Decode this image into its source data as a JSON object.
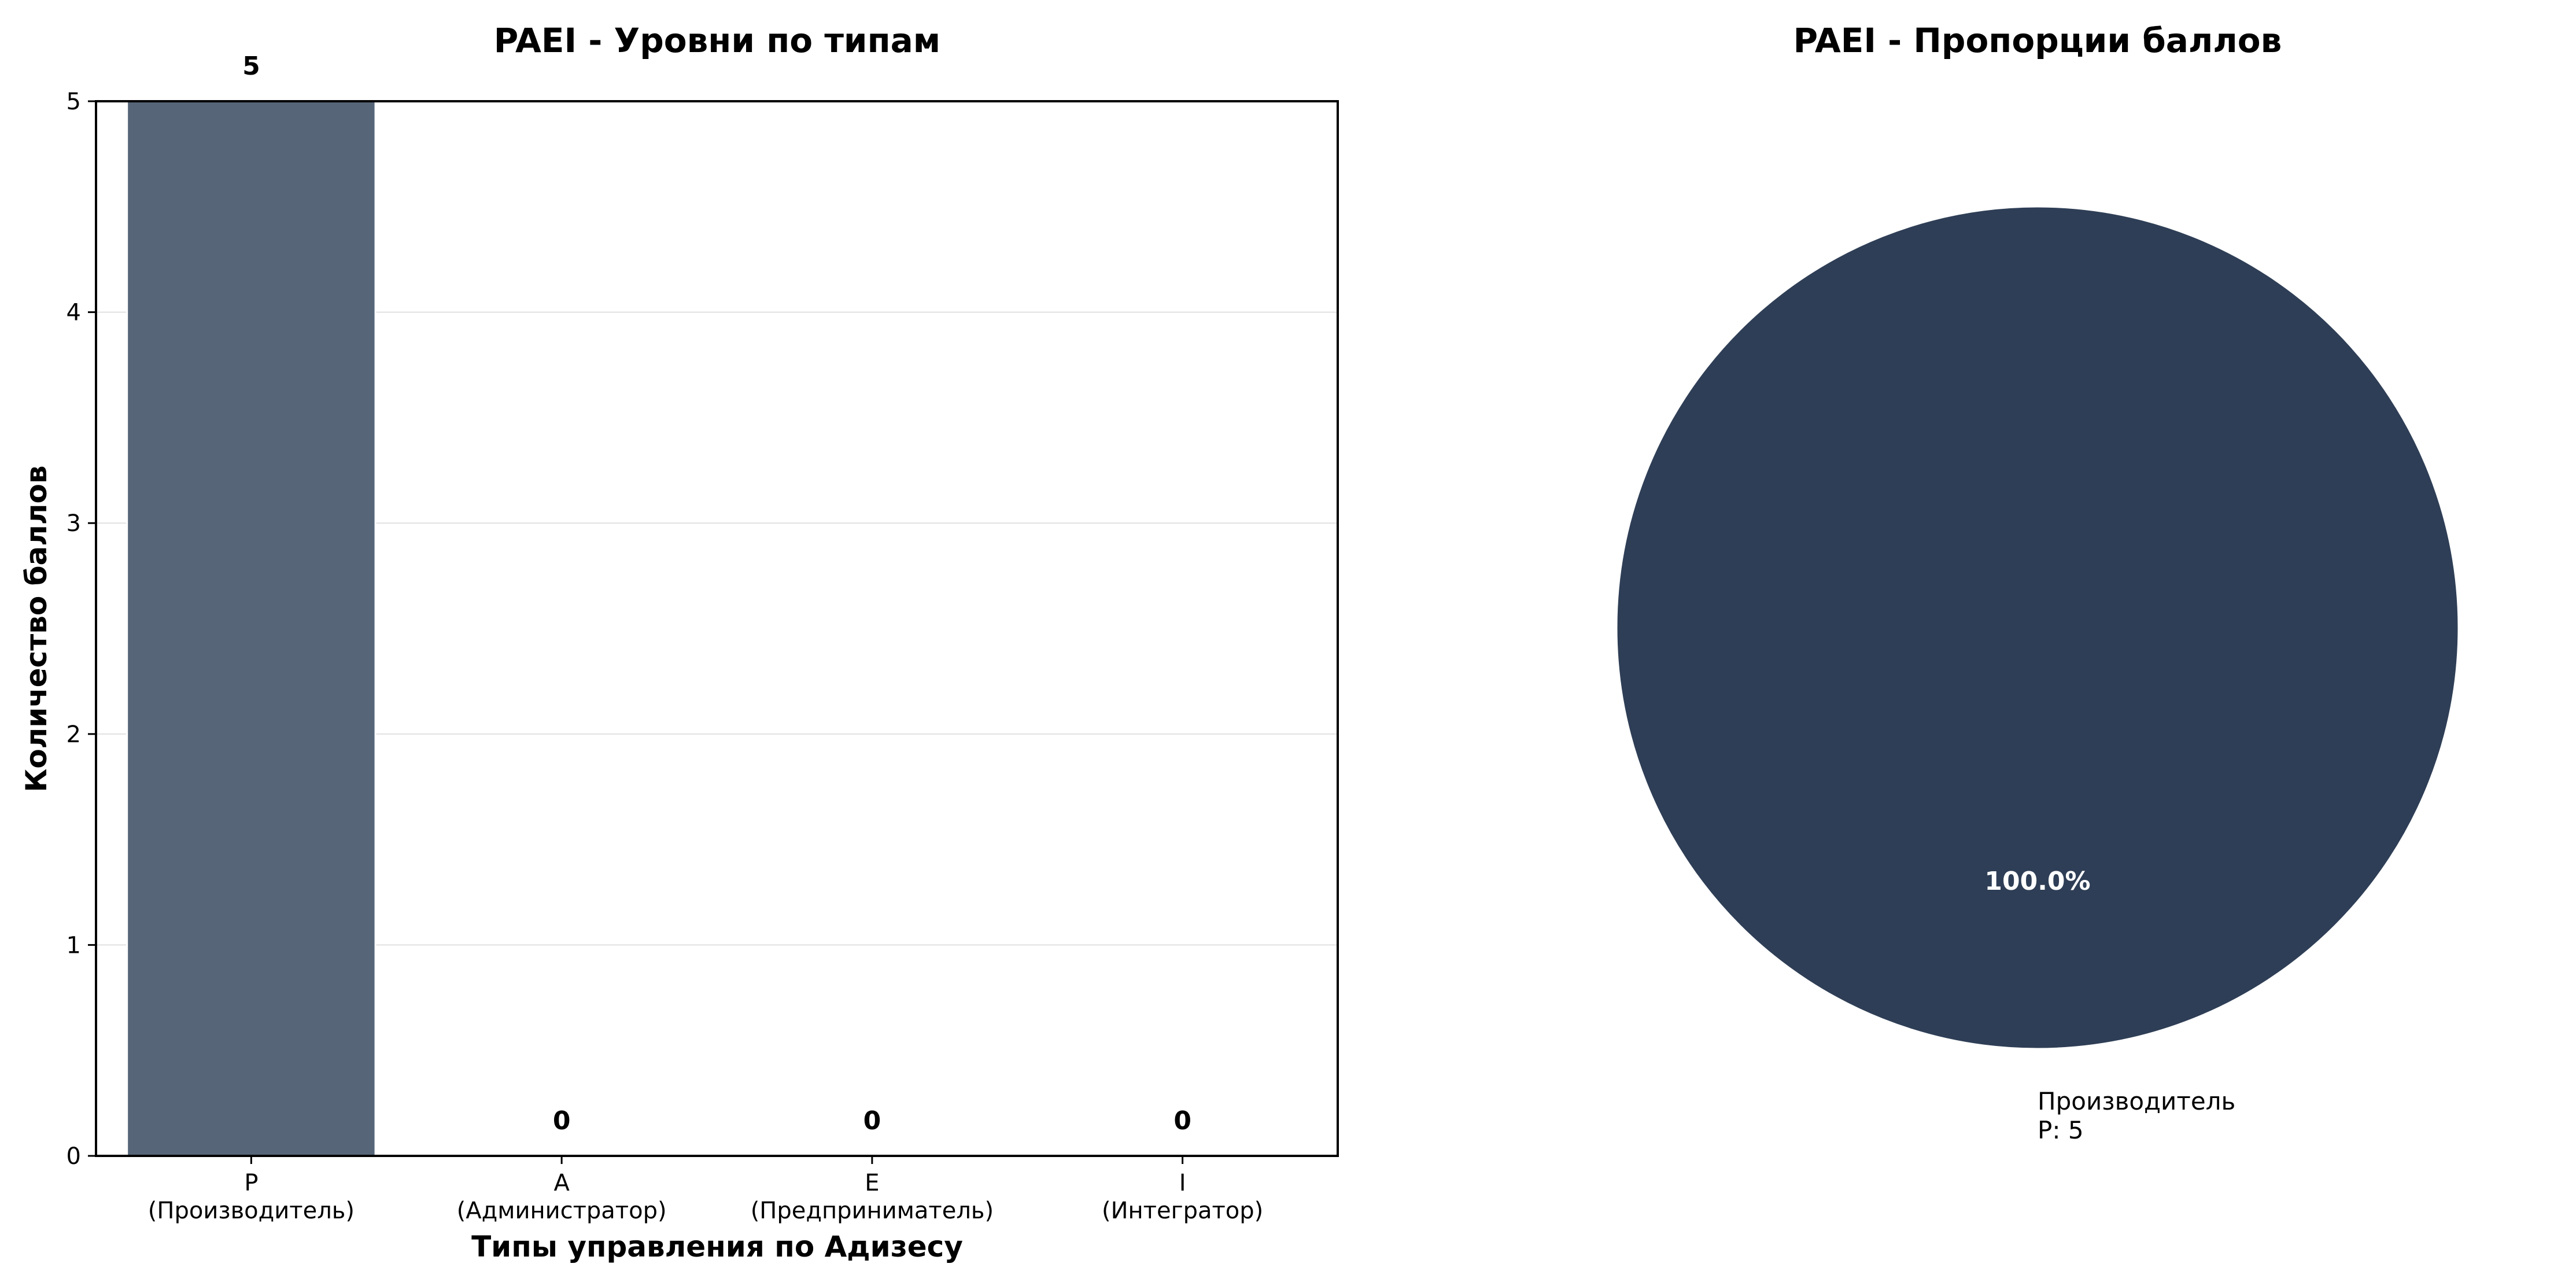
{
  "chart_data": [
    {
      "type": "bar",
      "title": "PAEI - Уровни по типам",
      "xlabel": "Типы управления по Адизесу",
      "ylabel": "Количество баллов",
      "categories": [
        {
          "code": "P",
          "name": "(Производитель)"
        },
        {
          "code": "A",
          "name": "(Администратор)"
        },
        {
          "code": "E",
          "name": "(Предприниматель)"
        },
        {
          "code": "I",
          "name": "(Интегратор)"
        }
      ],
      "values": [
        5,
        0,
        0,
        0
      ],
      "data_labels": [
        "5",
        "0",
        "0",
        "0"
      ],
      "ylim": [
        0,
        5
      ],
      "yticks": [
        0,
        1,
        2,
        3,
        4,
        5
      ],
      "grid": "horizontal",
      "bar_color": "#566678"
    },
    {
      "type": "pie",
      "title": "PAEI - Пропорции баллов",
      "slices": [
        {
          "label": "Производитель",
          "sublabel": "P: 5",
          "value": 5,
          "percent_label": "100.0%",
          "color": "#2e3e56"
        }
      ]
    }
  ]
}
